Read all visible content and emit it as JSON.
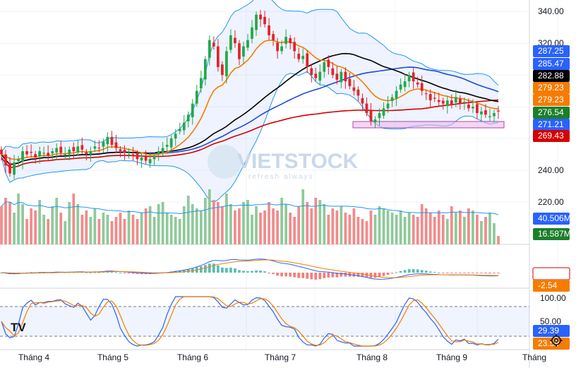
{
  "chart_data": {
    "type": "candlestick",
    "watermark": "VIETSTOCK",
    "watermark_sub": "refresh always",
    "price_axis": {
      "ylim": [
        228,
        345
      ],
      "ticks": [
        "340.00",
        "320.00",
        "240.00",
        "220.00"
      ]
    },
    "x_ticks": [
      "Tháng 4",
      "Tháng 5",
      "Tháng 6",
      "Tháng 7",
      "Tháng 8",
      "Tháng 9",
      "Tháng"
    ],
    "price_badges": [
      {
        "text": "287.25",
        "color": "#2962ff"
      },
      {
        "text": "285.47",
        "color": "#2962ff"
      },
      {
        "text": "282.88",
        "color": "#000000"
      },
      {
        "text": "279.23",
        "color": "#f57c00"
      },
      {
        "text": "279.23",
        "color": "#f57c00"
      },
      {
        "text": "276.54",
        "color": "#1b7f2a"
      },
      {
        "text": "271.21",
        "color": "#2962ff"
      },
      {
        "text": "269.43",
        "color": "#d50000"
      }
    ],
    "volume_badges": [
      {
        "text": "40.506M",
        "color": "#2962ff"
      },
      {
        "text": "16.587M",
        "color": "#1b7f2a"
      }
    ],
    "macd_badges": [
      {
        "text": "-0.34",
        "color": "#ffffff",
        "text_color": "#d50000",
        "border": "#d50000"
      },
      {
        "text": "-2.54",
        "color": "#f57c00"
      }
    ],
    "stoch_axis": {
      "ticks": [
        "100.00",
        "50.00"
      ]
    },
    "stoch_badges": [
      {
        "text": "29.39",
        "color": "#2962ff"
      },
      {
        "text": "23.59",
        "color": "#f57c00"
      }
    ],
    "closes": [
      250,
      243,
      238,
      245,
      247,
      252,
      250,
      251,
      248,
      252,
      251,
      249,
      252,
      254,
      251,
      250,
      253,
      252,
      255,
      253,
      250,
      252,
      255,
      254,
      258,
      261,
      256,
      254,
      252,
      251,
      250,
      249,
      247,
      248,
      246,
      247,
      249,
      252,
      254,
      256,
      260,
      263,
      266,
      270,
      275,
      282,
      290,
      298,
      310,
      322,
      318,
      305,
      300,
      315,
      325,
      320,
      310,
      318,
      322,
      330,
      338,
      335,
      332,
      325,
      322,
      315,
      318,
      324,
      320,
      315,
      310,
      312,
      305,
      300,
      298,
      302,
      308,
      305,
      300,
      297,
      302,
      296,
      293,
      290,
      287,
      282,
      276,
      271,
      272,
      276,
      279,
      282,
      286,
      290,
      294,
      296,
      300,
      296,
      294,
      290,
      288,
      284,
      285,
      283,
      282,
      284,
      281,
      286,
      282,
      283,
      279,
      280,
      276,
      277,
      275,
      274,
      276,
      277
    ],
    "volume": [
      18,
      22,
      20,
      15,
      24,
      19,
      12,
      17,
      16,
      21,
      14,
      12,
      18,
      22,
      15,
      11,
      20,
      24,
      19,
      14,
      16,
      13,
      17,
      12,
      15,
      14,
      11,
      13,
      15,
      12,
      16,
      14,
      12,
      15,
      17,
      18,
      13,
      19,
      20,
      15,
      14,
      13,
      12,
      18,
      23,
      19,
      17,
      16,
      22,
      26,
      21,
      20,
      18,
      24,
      19,
      16,
      17,
      20,
      21,
      14,
      18,
      15,
      16,
      20,
      17,
      16,
      22,
      19,
      15,
      13,
      18,
      26,
      20,
      17,
      22,
      21,
      19,
      14,
      17,
      16,
      18,
      15,
      14,
      17,
      13,
      12,
      11,
      16,
      14,
      18,
      17,
      16,
      15,
      14,
      16,
      13,
      15,
      14,
      13,
      19,
      17,
      15,
      13,
      16,
      14,
      12,
      18,
      15,
      16,
      13,
      17,
      16,
      14,
      11,
      13,
      15,
      10,
      4
    ],
    "ma_values": {
      "blue": 285.47,
      "black": 282.88,
      "orange": 279.23,
      "red": 269.43
    },
    "macd_values": {
      "macd": -0.34,
      "signal": -2.54
    },
    "stoch_values": {
      "k": 29.39,
      "d": 23.59
    }
  }
}
